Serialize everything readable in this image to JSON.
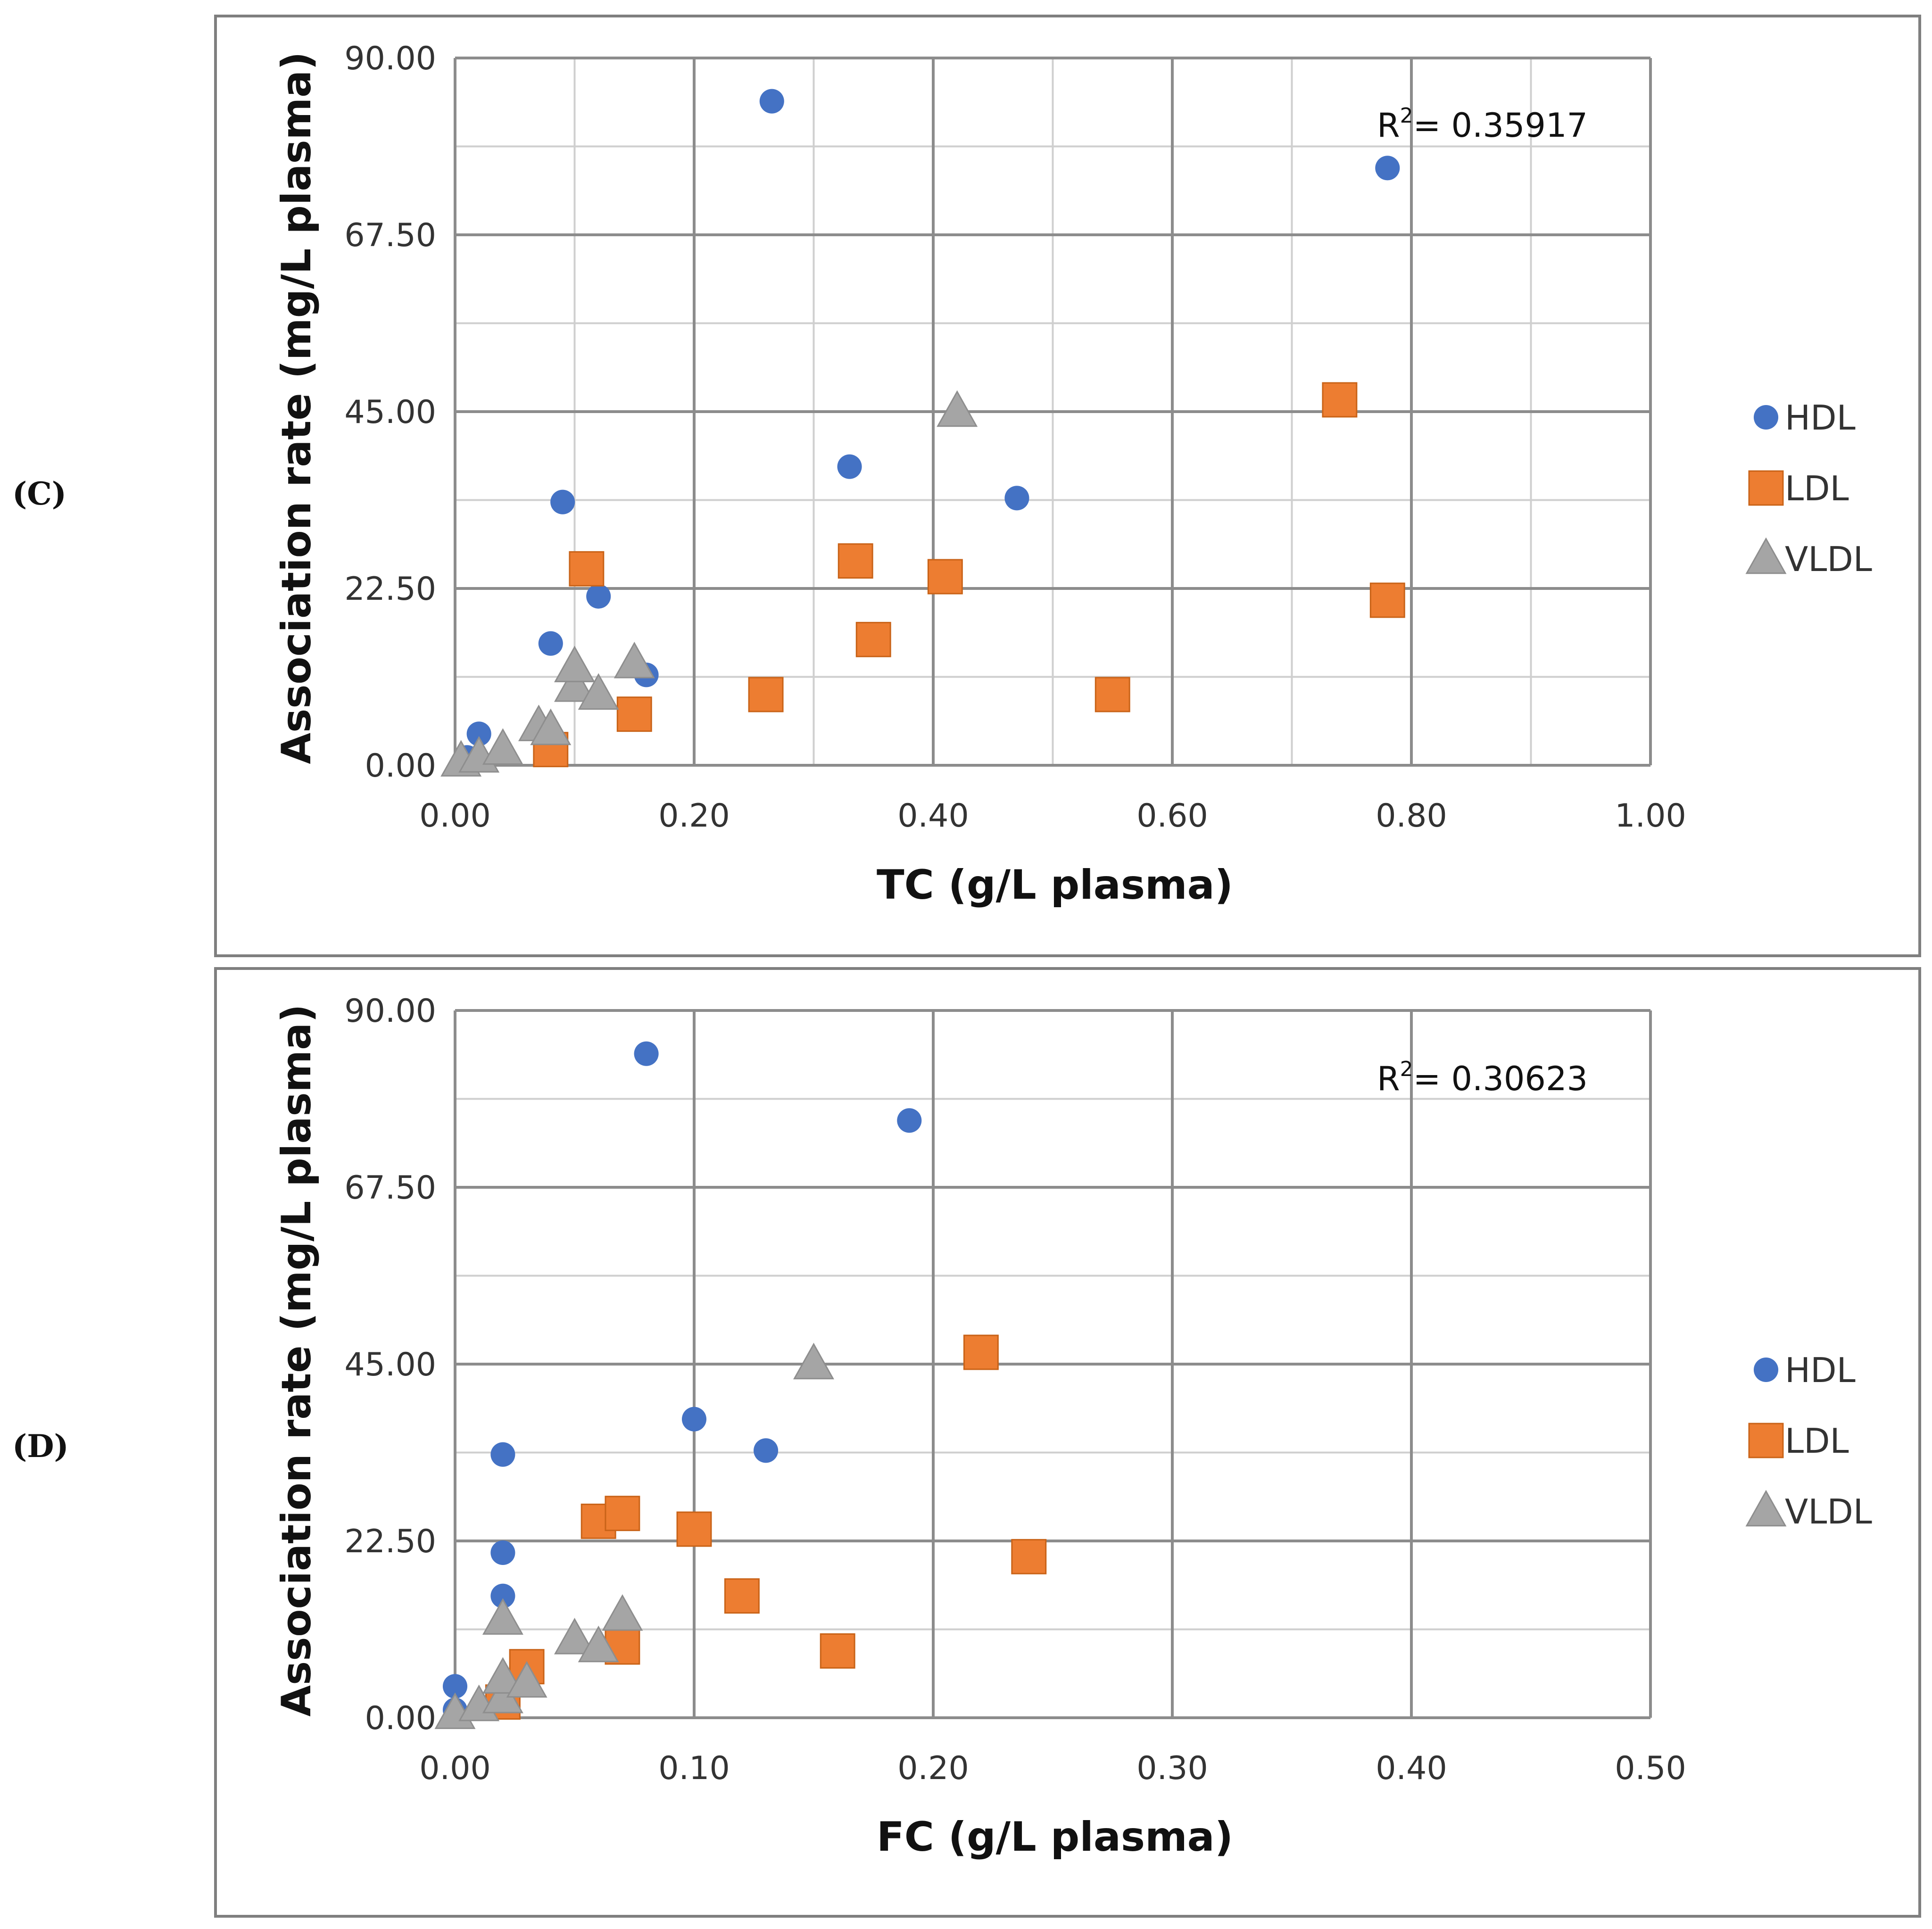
{
  "colors": {
    "HDL": "#4472C4",
    "LDL": "#ED7D31",
    "VLDL": "#A5A5A5"
  },
  "chart_data": [
    {
      "type": "scatter",
      "panel_label": "(C)",
      "xlabel": "TC (g/L plasma)",
      "ylabel": "Association rate  (mg/L plasma)",
      "xlim": [
        0,
        1.0
      ],
      "ylim": [
        0,
        90
      ],
      "x_major_ticks": [
        "0.00",
        "0.20",
        "0.40",
        "0.60",
        "0.80",
        "1.00"
      ],
      "y_major_ticks": [
        "0.00",
        "22.50",
        "45.00",
        "67.50",
        "90.00"
      ],
      "x_minor_step": 0.1,
      "y_minor_step": 11.25,
      "annotation": {
        "sup_base": "R",
        "sup": "2",
        "text": "=  0.35917"
      },
      "legend": [
        "HDL",
        "LDL",
        "VLDL"
      ],
      "series": [
        {
          "name": "HDL",
          "marker": "circle",
          "x": [
            0.01,
            0.02,
            0.08,
            0.09,
            0.12,
            0.16,
            0.265,
            0.33,
            0.47,
            0.78
          ],
          "y": [
            1.0,
            4.0,
            15.5,
            33.5,
            21.5,
            11.5,
            84.5,
            38.0,
            34.0,
            76.0
          ]
        },
        {
          "name": "LDL",
          "marker": "square",
          "x": [
            0.08,
            0.11,
            0.15,
            0.26,
            0.335,
            0.35,
            0.41,
            0.55,
            0.74,
            0.78
          ],
          "y": [
            2.0,
            25.0,
            6.5,
            9.0,
            26.0,
            16.0,
            24.0,
            9.0,
            46.5,
            21.0
          ]
        },
        {
          "name": "VLDL",
          "marker": "triangle",
          "x": [
            0.005,
            0.02,
            0.04,
            0.07,
            0.08,
            0.1,
            0.1,
            0.12,
            0.15,
            0.42
          ],
          "y": [
            0.5,
            1.0,
            2.0,
            5.0,
            4.5,
            10.0,
            12.5,
            9.0,
            13.0,
            45.0
          ]
        }
      ]
    },
    {
      "type": "scatter",
      "panel_label": "(D)",
      "xlabel": "FC (g/L plasma)",
      "ylabel": "Association rate  (mg/L plasma)",
      "xlim": [
        0,
        0.5
      ],
      "ylim": [
        0,
        90
      ],
      "x_major_ticks": [
        "0.00",
        "0.10",
        "0.20",
        "0.30",
        "0.40",
        "0.50"
      ],
      "y_major_ticks": [
        "0.00",
        "22.50",
        "45.00",
        "67.50",
        "90.00"
      ],
      "x_minor_step": null,
      "y_minor_step": 11.25,
      "annotation": {
        "sup_base": "R",
        "sup": "2",
        "text": "= 0.30623"
      },
      "legend": [
        "HDL",
        "LDL",
        "VLDL"
      ],
      "series": [
        {
          "name": "HDL",
          "marker": "circle",
          "x": [
            0.0,
            0.0,
            0.02,
            0.02,
            0.02,
            0.08,
            0.1,
            0.13,
            0.19
          ],
          "y": [
            1.0,
            4.0,
            15.5,
            21.0,
            33.5,
            84.5,
            38.0,
            34.0,
            76.0
          ]
        },
        {
          "name": "LDL",
          "marker": "square",
          "x": [
            0.02,
            0.03,
            0.06,
            0.07,
            0.07,
            0.1,
            0.12,
            0.16,
            0.22,
            0.24
          ],
          "y": [
            2.0,
            6.5,
            25.0,
            26.0,
            9.0,
            24.0,
            15.5,
            8.5,
            46.5,
            20.5
          ]
        },
        {
          "name": "VLDL",
          "marker": "triangle",
          "x": [
            0.0,
            0.01,
            0.02,
            0.02,
            0.03,
            0.05,
            0.06,
            0.07,
            0.02,
            0.15
          ],
          "y": [
            0.5,
            1.5,
            2.5,
            5.0,
            4.5,
            10.0,
            9.0,
            13.0,
            12.5,
            45.0
          ]
        }
      ]
    }
  ]
}
